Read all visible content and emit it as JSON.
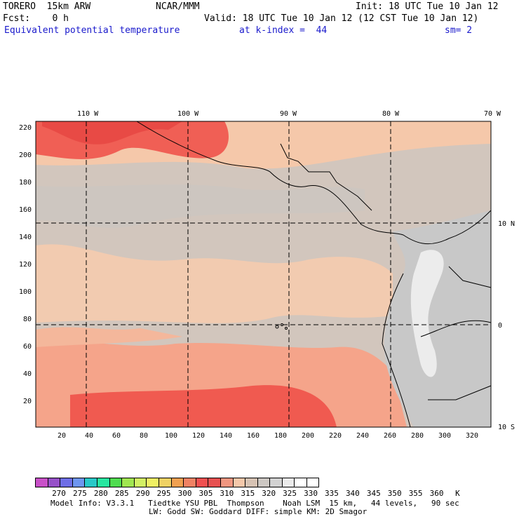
{
  "header": {
    "model": "TORERO  15km ARW",
    "org": "NCAR/MMM",
    "init": "Init: 18 UTC Tue 10 Jan 12",
    "fcst": "Fcst:    0 h",
    "valid": "Valid: 18 UTC Tue 10 Jan 12 (12 CST Tue 10 Jan 12)",
    "field": "Equivalent potential temperature",
    "level": "at k-index =  44",
    "smooth": "sm= 2"
  },
  "axes": {
    "top_lon": [
      "110 W",
      "100 W",
      "90 W",
      "80 W",
      "70 W"
    ],
    "right_lat": [
      "10 N",
      "0",
      "10 S"
    ],
    "left_ticks": [
      "220",
      "200",
      "180",
      "160",
      "140",
      "120",
      "100",
      "80",
      "60",
      "40",
      "20"
    ],
    "bottom_ticks": [
      "20",
      "40",
      "60",
      "80",
      "100",
      "120",
      "140",
      "160",
      "180",
      "200",
      "220",
      "240",
      "260",
      "280",
      "300",
      "320"
    ]
  },
  "colorbar": {
    "colors": [
      "#c850c8",
      "#9650c8",
      "#6e6ee6",
      "#6e96f0",
      "#28c8c8",
      "#28e6a0",
      "#50dc50",
      "#a0e650",
      "#d2f064",
      "#f0f064",
      "#f0d264",
      "#f0a050",
      "#f08264",
      "#f05050",
      "#e65050",
      "#f09680",
      "#f5c8aa",
      "#d7c3b4",
      "#cdc8c3",
      "#d2d2d2",
      "#ebebeb",
      "#ffffff"
    ],
    "labels": [
      "270",
      "275",
      "280",
      "285",
      "290",
      "295",
      "300",
      "305",
      "310",
      "315",
      "320",
      "325",
      "330",
      "335",
      "340",
      "345",
      "350",
      "355",
      "360",
      "K"
    ]
  },
  "footer": {
    "line1": "Model Info: V3.3.1   Tiedtke YSU PBL  Thompson    Noah LSM  15 km,   44 levels,   90 sec",
    "line2": "LW: Godd SW: Goddard DIFF: simple KM: 2D Smagor"
  }
}
